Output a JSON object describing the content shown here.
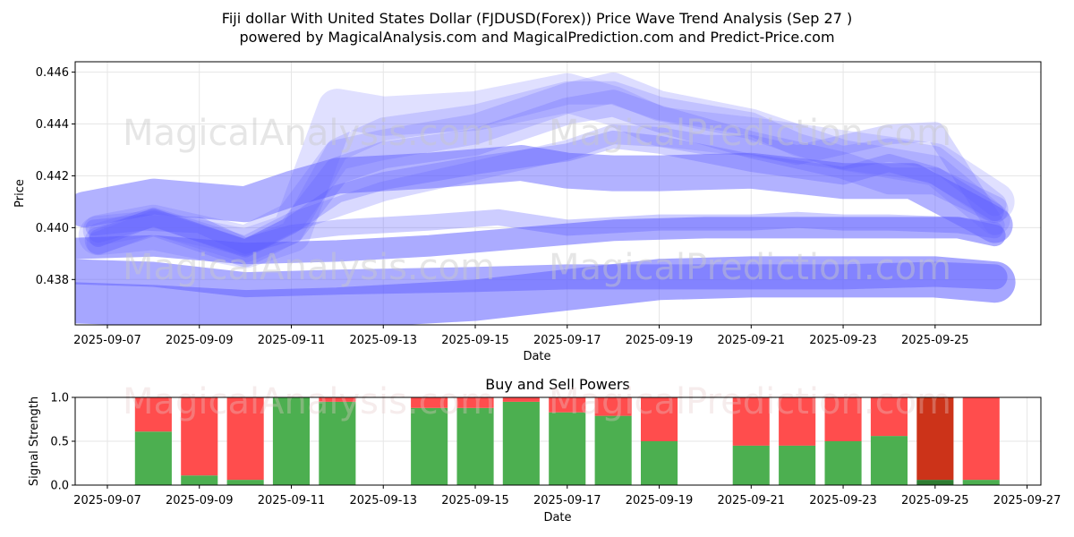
{
  "page": {
    "title_line1": "Fiji dollar With United States Dollar (FJDUSD(Forex)) Price Wave Trend Analysis (Sep 27 )",
    "title_line2": "powered by MagicalAnalysis.com and MagicalPrediction.com and Predict-Price.com",
    "watermarks": [
      "MagicalAnalysis.com",
      "MagicalPrediction.com"
    ]
  },
  "chart_data": [
    {
      "type": "line",
      "name": "price-wave-chart",
      "xlabel": "Date",
      "ylabel": "Price",
      "xlim": [
        -0.7,
        20.3
      ],
      "ylim": [
        0.43625,
        0.4464
      ],
      "grid": true,
      "x_ticks": [
        {
          "pos": 0,
          "label": "2025-09-07"
        },
        {
          "pos": 2,
          "label": "2025-09-09"
        },
        {
          "pos": 4,
          "label": "2025-09-11"
        },
        {
          "pos": 6,
          "label": "2025-09-13"
        },
        {
          "pos": 8,
          "label": "2025-09-15"
        },
        {
          "pos": 10,
          "label": "2025-09-17"
        },
        {
          "pos": 12,
          "label": "2025-09-19"
        },
        {
          "pos": 14,
          "label": "2025-09-21"
        },
        {
          "pos": 16,
          "label": "2025-09-23"
        },
        {
          "pos": 18,
          "label": "2025-09-25"
        }
      ],
      "y_ticks": [
        0.438,
        0.44,
        0.442,
        0.444,
        0.446
      ],
      "y_tick_labels": [
        "0.438",
        "0.440",
        "0.442",
        "0.444",
        "0.446"
      ],
      "colors": {
        "band": "#6666ff",
        "band_dark": "#4d4dff"
      },
      "series": [
        {
          "name": "wave-1",
          "x": [
            -0.7,
            1,
            3,
            5,
            8,
            10,
            12,
            14,
            16,
            18,
            19.3
          ],
          "values": [
            0.4371,
            0.437,
            0.4368,
            0.4369,
            0.4372,
            0.4376,
            0.438,
            0.4381,
            0.4381,
            0.4381,
            0.4379
          ]
        },
        {
          "name": "wave-2",
          "x": [
            -0.7,
            1,
            3,
            5,
            8,
            10,
            12,
            14,
            16,
            18,
            19.3
          ],
          "values": [
            0.4383,
            0.4382,
            0.4378,
            0.4379,
            0.438,
            0.4381,
            0.4381,
            0.4381,
            0.4381,
            0.4382,
            0.4381
          ]
        },
        {
          "name": "wave-3",
          "x": [
            -0.7,
            1,
            3,
            5,
            7,
            9,
            11,
            13,
            15,
            17,
            18.5,
            19.3
          ],
          "values": [
            0.4392,
            0.4393,
            0.439,
            0.4391,
            0.4393,
            0.4396,
            0.4399,
            0.44,
            0.44,
            0.44,
            0.44,
            0.4397
          ]
        },
        {
          "name": "wave-4",
          "x": [
            -0.3,
            0.8,
            2,
            3,
            4,
            5,
            7,
            8.5,
            10,
            12,
            14,
            15,
            16,
            17,
            18.5,
            19.3
          ],
          "values": [
            0.44,
            0.4402,
            0.4401,
            0.4393,
            0.4398,
            0.44,
            0.4402,
            0.4404,
            0.44,
            0.4402,
            0.4402,
            0.4403,
            0.4402,
            0.4402,
            0.4401,
            0.4399
          ]
        },
        {
          "name": "wave-5",
          "x": [
            -0.5,
            1,
            3,
            4,
            5,
            7,
            9,
            10,
            11,
            12,
            14,
            16,
            17.5,
            19,
            19.3
          ],
          "values": [
            0.4407,
            0.4412,
            0.4409,
            0.4415,
            0.442,
            0.4422,
            0.4425,
            0.4422,
            0.4421,
            0.4421,
            0.4422,
            0.4418,
            0.4418,
            0.4404,
            0.4401
          ]
        },
        {
          "name": "wave-6",
          "x": [
            -0.2,
            1,
            3,
            4,
            5,
            6,
            8,
            10,
            11,
            12,
            13,
            14,
            15,
            16,
            17,
            18,
            19.3
          ],
          "values": [
            0.4398,
            0.4404,
            0.4393,
            0.4402,
            0.4408,
            0.4414,
            0.4422,
            0.443,
            0.4436,
            0.4435,
            0.4432,
            0.4432,
            0.4428,
            0.4432,
            0.4436,
            0.4437,
            0.4401
          ]
        },
        {
          "name": "wave-7",
          "x": [
            -0.2,
            1,
            3,
            4,
            5,
            6,
            8,
            10,
            11,
            12,
            14,
            16,
            17,
            18,
            19.3
          ],
          "values": [
            0.4395,
            0.4402,
            0.439,
            0.4399,
            0.4422,
            0.4428,
            0.4433,
            0.4445,
            0.4448,
            0.4442,
            0.4432,
            0.4424,
            0.4418,
            0.4418,
            0.4407
          ]
        },
        {
          "name": "wave-8",
          "x": [
            -0.2,
            1,
            3,
            4,
            5,
            6,
            8,
            10,
            11,
            12,
            14,
            16,
            18,
            19.3
          ],
          "values": [
            0.4397,
            0.4399,
            0.4392,
            0.4398,
            0.4446,
            0.4443,
            0.4445,
            0.4452,
            0.4447,
            0.4439,
            0.4435,
            0.443,
            0.4425,
            0.441
          ]
        },
        {
          "name": "wave-9",
          "x": [
            -0.2,
            1,
            3,
            4,
            5,
            6,
            8,
            10,
            11,
            12,
            14,
            15,
            16,
            17,
            18,
            19.3
          ],
          "values": [
            0.4394,
            0.4402,
            0.4391,
            0.4398,
            0.443,
            0.4438,
            0.4443,
            0.4452,
            0.4452,
            0.4446,
            0.444,
            0.4432,
            0.4427,
            0.443,
            0.4427,
            0.4409
          ]
        },
        {
          "name": "wave-10",
          "x": [
            -0.2,
            1,
            3,
            4,
            5,
            6,
            8,
            10,
            11,
            12,
            14,
            16,
            17,
            18,
            19.3
          ],
          "values": [
            0.4396,
            0.4404,
            0.4392,
            0.4401,
            0.4413,
            0.4418,
            0.4424,
            0.4429,
            0.4434,
            0.4432,
            0.4425,
            0.442,
            0.4425,
            0.442,
            0.4406
          ]
        },
        {
          "name": "wave-11",
          "x": [
            -0.2,
            1,
            3,
            4,
            5,
            6,
            8,
            10,
            11,
            12,
            14,
            16,
            18,
            19.3
          ],
          "values": [
            0.4399,
            0.4403,
            0.4395,
            0.4404,
            0.4428,
            0.4432,
            0.4438,
            0.445,
            0.4454,
            0.4447,
            0.444,
            0.4428,
            0.4422,
            0.4403
          ]
        }
      ]
    },
    {
      "type": "bar",
      "name": "buy-sell-powers-chart",
      "title": "Buy and Sell Powers",
      "xlabel": "Date",
      "ylabel": "Signal Strength",
      "xlim": [
        -0.7,
        20.3
      ],
      "ylim": [
        0,
        1
      ],
      "grid": true,
      "x_ticks": [
        {
          "pos": 0,
          "label": "2025-09-07"
        },
        {
          "pos": 2,
          "label": "2025-09-09"
        },
        {
          "pos": 4,
          "label": "2025-09-11"
        },
        {
          "pos": 6,
          "label": "2025-09-13"
        },
        {
          "pos": 8,
          "label": "2025-09-15"
        },
        {
          "pos": 10,
          "label": "2025-09-17"
        },
        {
          "pos": 12,
          "label": "2025-09-19"
        },
        {
          "pos": 14,
          "label": "2025-09-21"
        },
        {
          "pos": 16,
          "label": "2025-09-23"
        },
        {
          "pos": 18,
          "label": "2025-09-25"
        },
        {
          "pos": 20,
          "label": "2025-09-27"
        }
      ],
      "y_ticks": [
        0.0,
        0.5,
        1.0
      ],
      "y_tick_labels": [
        "0.0",
        "0.5",
        "1.0"
      ],
      "colors": {
        "buy": "#4caf50",
        "sell": "#ff4d4d",
        "buy_dark": "#2e7d32",
        "sell_dark": "#cc3319"
      },
      "bars": [
        {
          "date": "2025-09-08",
          "pos": 1,
          "buy": 0.61,
          "sell": 0.39
        },
        {
          "date": "2025-09-09",
          "pos": 2,
          "buy": 0.11,
          "sell": 0.89
        },
        {
          "date": "2025-09-10",
          "pos": 3,
          "buy": 0.06,
          "sell": 0.94
        },
        {
          "date": "2025-09-11",
          "pos": 4,
          "buy": 1.0,
          "sell": 0.0
        },
        {
          "date": "2025-09-12",
          "pos": 5,
          "buy": 0.95,
          "sell": 0.05
        },
        {
          "date": "2025-09-14",
          "pos": 7,
          "buy": 0.88,
          "sell": 0.12
        },
        {
          "date": "2025-09-15",
          "pos": 8,
          "buy": 0.88,
          "sell": 0.12
        },
        {
          "date": "2025-09-16",
          "pos": 9,
          "buy": 0.95,
          "sell": 0.05
        },
        {
          "date": "2025-09-17",
          "pos": 10,
          "buy": 0.83,
          "sell": 0.17
        },
        {
          "date": "2025-09-18",
          "pos": 11,
          "buy": 0.79,
          "sell": 0.21
        },
        {
          "date": "2025-09-19",
          "pos": 12,
          "buy": 0.5,
          "sell": 0.5
        },
        {
          "date": "2025-09-21",
          "pos": 14,
          "buy": 0.45,
          "sell": 0.55
        },
        {
          "date": "2025-09-22",
          "pos": 15,
          "buy": 0.45,
          "sell": 0.55
        },
        {
          "date": "2025-09-23",
          "pos": 16,
          "buy": 0.5,
          "sell": 0.5
        },
        {
          "date": "2025-09-24",
          "pos": 17,
          "buy": 0.56,
          "sell": 0.44
        },
        {
          "date": "2025-09-25",
          "pos": 18,
          "buy": 0.06,
          "sell": 0.94,
          "highlight": true
        },
        {
          "date": "2025-09-26",
          "pos": 19,
          "buy": 0.06,
          "sell": 0.94
        }
      ]
    }
  ]
}
